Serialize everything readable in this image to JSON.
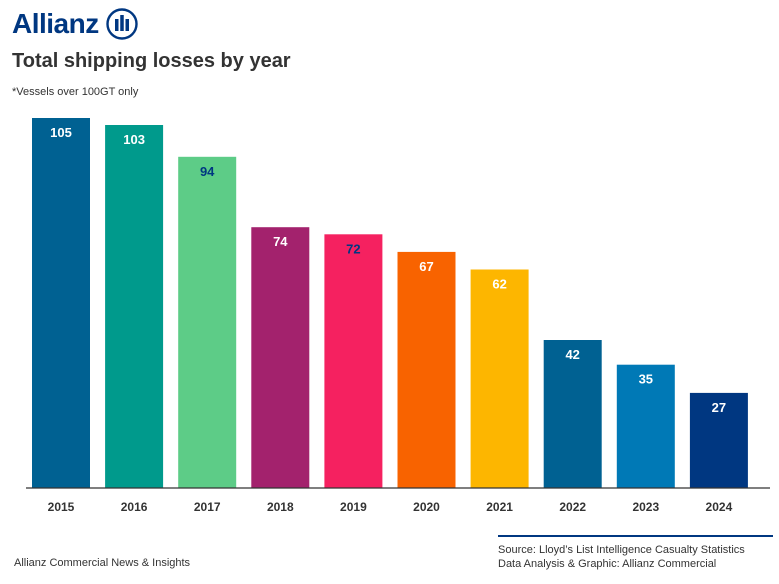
{
  "brand": {
    "name": "Allianz",
    "logo_icon": "allianz-eagle-icon",
    "color": "#003781"
  },
  "header": {
    "title": "Total shipping losses by year",
    "subtitle": "*Vessels over 100GT only"
  },
  "chart_data": {
    "type": "bar",
    "title": "Total shipping losses by year",
    "subtitle": "*Vessels over 100GT only",
    "xlabel": "",
    "ylabel": "",
    "categories": [
      "2015",
      "2016",
      "2017",
      "2018",
      "2019",
      "2020",
      "2021",
      "2022",
      "2023",
      "2024"
    ],
    "values": [
      105,
      103,
      94,
      74,
      72,
      67,
      62,
      42,
      35,
      27
    ],
    "colors": [
      "#006192",
      "#009A8C",
      "#5DCC87",
      "#A3226D",
      "#F52160",
      "#F86300",
      "#FDB600",
      "#006192",
      "#0079B6",
      "#003781"
    ],
    "label_colors": [
      "#ffffff",
      "#ffffff",
      "#003781",
      "#ffffff",
      "#003781",
      "#ffffff",
      "#ffffff",
      "#ffffff",
      "#ffffff",
      "#ffffff"
    ],
    "ylim": [
      0,
      105
    ],
    "grid": false,
    "legend": "none"
  },
  "footer": {
    "left": "Allianz Commercial News & Insights",
    "source_line1": "Source: Lloyd’s List Intelligence Casualty Statistics",
    "source_line2": "Data Analysis & Graphic: Allianz Commercial"
  }
}
